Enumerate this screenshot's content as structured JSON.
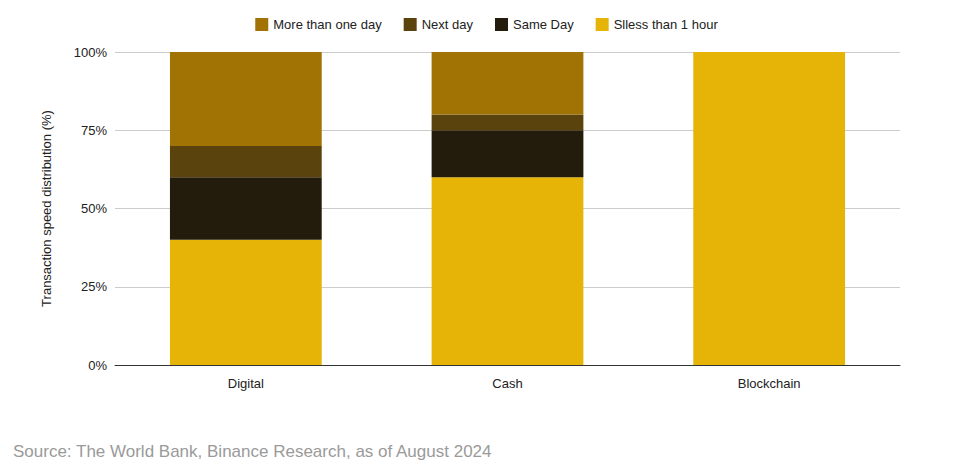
{
  "chart_data": {
    "type": "bar",
    "stacked": true,
    "categories": [
      "Digital",
      "Cash",
      "Blockchain"
    ],
    "series": [
      {
        "name": "More than one day",
        "color": "#a07304",
        "values": [
          30,
          20,
          0
        ]
      },
      {
        "name": "Next day",
        "color": "#5b430d",
        "values": [
          10,
          5,
          0
        ]
      },
      {
        "name": "Same Day",
        "color": "#231c0c",
        "values": [
          20,
          15,
          0
        ]
      },
      {
        "name": "Slless than 1 hour",
        "color": "#e5b406",
        "values": [
          40,
          60,
          100
        ]
      }
    ],
    "y_label": "Transaction speed distribution (%)",
    "ylim": [
      0,
      100
    ],
    "yticks": [
      {
        "value": 0,
        "label": "0%"
      },
      {
        "value": 25,
        "label": "25%"
      },
      {
        "value": 50,
        "label": "50%"
      },
      {
        "value": 75,
        "label": "75%"
      },
      {
        "value": 100,
        "label": "100%"
      }
    ],
    "grid": true,
    "legend": "top",
    "source": "Source: The World Bank, Binance Research, as of August 2024"
  }
}
